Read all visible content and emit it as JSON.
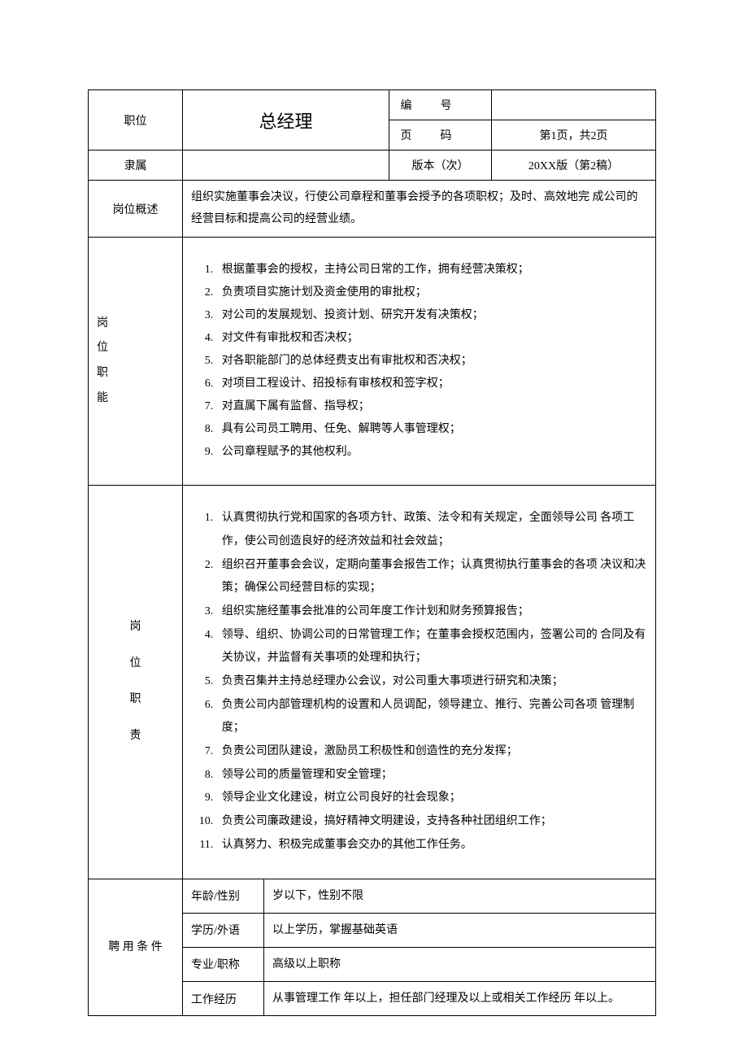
{
  "header": {
    "position_label": "职位",
    "position_title": "总经理",
    "number_label": "编号",
    "number_value": "",
    "page_label": "页码",
    "page_value": "第1页，共2页",
    "affiliation_label": "隶属",
    "affiliation_value": "",
    "version_label": "版本（次）",
    "version_value": "20XX版（第2稿）"
  },
  "summary": {
    "label": "岗位概述",
    "text": "组织实施董事会决议，行使公司章程和董事会授予的各项职权；及时、高效地完 成公司的经营目标和提高公司的经营业绩。"
  },
  "functions": {
    "label_lines": [
      "岗",
      "位",
      "职",
      "能"
    ],
    "items": [
      "根据董事会的授权，主持公司日常的工作，拥有经营决策权；",
      "负责项目实施计划及资金使用的审批权；",
      "对公司的发展规划、投资计划、研究开发有决策权；",
      "对文件有审批权和否决权；",
      "对各职能部门的总体经费支出有审批权和否决权；",
      "对项目工程设计、招投标有审核权和签字权；",
      "对直属下属有监督、指导权；",
      "具有公司员工聘用、任免、解聘等人事管理权；",
      "公司章程赋予的其他权利。"
    ]
  },
  "duties": {
    "label_lines": [
      "岗",
      "位",
      "职",
      "责"
    ],
    "items": [
      "认真贯彻执行党和国家的各项方针、政策、法令和有关规定，全面领导公司 各项工作，使公司创造良好的经济效益和社会效益；",
      "组织召开董事会会议，定期向董事会报告工作；认真贯彻执行董事会的各项 决议和决策；确保公司经营目标的实现；",
      "组织实施经董事会批准的公司年度工作计划和财务预算报告；",
      "领导、组织、协调公司的日常管理工作；在董事会授权范围内，签署公司的 合同及有关协议，并监督有关事项的处理和执行；",
      "负责召集并主持总经理办公会议，对公司重大事项进行研究和决策；",
      "负责公司内部管理机构的设置和人员调配，领导建立、推行、完善公司各项 管理制度；",
      "负责公司团队建设，激励员工积极性和创造性的充分发挥；",
      "领导公司的质量管理和安全管理；",
      "领导企业文化建设，树立公司良好的社会现象；",
      "负责公司廉政建设，搞好精神文明建设，支持各种社团组织工作；",
      "认真努力、积极完成董事会交办的其他工作任务。"
    ]
  },
  "hiring": {
    "label": "聘 用 条 件",
    "rows": [
      {
        "k": "年龄/性别",
        "v": "    岁以下，性别不限"
      },
      {
        "k": "学历/外语",
        "v": "    以上学历，掌握基础英语"
      },
      {
        "k": "专业/职称",
        "v": "高级以上职称"
      },
      {
        "k": "工作经历",
        "v": "从事管理工作      年以上，担任部门经理及以上或相关工作经历     年以上。"
      }
    ]
  }
}
